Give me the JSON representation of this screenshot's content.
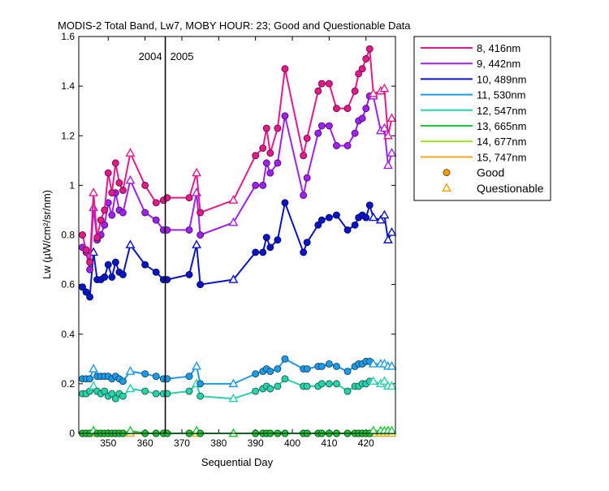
{
  "chart_data": {
    "type": "line",
    "title": "MODIS-2 Total Band,  Lw7, MOBY HOUR: 23;  Good and Questionable Data",
    "xlabel": "Sequential Day",
    "ylabel": "Lw (µW/cm²/sr/nm)",
    "xlim": [
      342,
      428
    ],
    "ylim": [
      0,
      1.6
    ],
    "xticks": [
      350,
      360,
      370,
      380,
      390,
      400,
      410,
      420
    ],
    "yticks": [
      0,
      0.2,
      0.4,
      0.6,
      0.8,
      1,
      1.2,
      1.4,
      1.6
    ],
    "ytick_labels": [
      "0",
      "0.2",
      "0.4",
      "0.6",
      "0.8",
      "1",
      "1.2",
      "1.4",
      "1.6"
    ],
    "year_divider": {
      "x": 365.5,
      "left_label": "2004",
      "right_label": "2005"
    },
    "legend_position": "outside-top-right",
    "x": [
      343,
      344,
      345,
      346,
      347,
      348,
      349,
      350,
      351,
      352,
      353,
      354,
      356,
      360,
      363,
      365,
      366,
      372,
      374,
      375,
      384,
      390,
      392,
      393,
      394,
      396,
      398,
      403,
      404,
      407,
      408,
      410,
      412,
      415,
      417,
      418,
      419,
      420,
      421,
      422,
      424,
      425,
      426,
      427
    ],
    "quality": [
      "G",
      "G",
      "G",
      "Q",
      "G",
      "G",
      "G",
      "G",
      "G",
      "G",
      "G",
      "G",
      "Q",
      "G",
      "G",
      "G",
      "G",
      "G",
      "Q",
      "G",
      "Q",
      "G",
      "G",
      "G",
      "G",
      "G",
      "G",
      "G",
      "G",
      "G",
      "G",
      "G",
      "G",
      "G",
      "G",
      "G",
      "G",
      "G",
      "G",
      "Q",
      "Q",
      "Q",
      "Q",
      "Q"
    ],
    "series": [
      {
        "name": "8, 416nm",
        "color": "#e6198c",
        "values": [
          0.8,
          0.74,
          0.69,
          0.97,
          0.79,
          0.86,
          0.9,
          1.05,
          0.97,
          1.09,
          1.01,
          0.98,
          1.13,
          1.0,
          0.93,
          0.94,
          0.95,
          0.95,
          1.05,
          0.89,
          0.94,
          1.12,
          1.15,
          1.23,
          1.13,
          1.23,
          1.47,
          1.12,
          1.19,
          1.38,
          1.41,
          1.41,
          1.31,
          1.31,
          1.38,
          1.45,
          1.47,
          1.51,
          1.55,
          1.37,
          1.38,
          1.39,
          1.2,
          1.27
        ]
      },
      {
        "name": "9, 442nm",
        "color": "#a020f0",
        "values": [
          0.75,
          0.73,
          0.66,
          0.91,
          0.78,
          0.8,
          0.84,
          0.93,
          0.88,
          0.97,
          0.9,
          0.89,
          1.02,
          0.89,
          0.86,
          0.82,
          0.82,
          0.82,
          0.97,
          0.8,
          0.85,
          1.0,
          1.0,
          1.09,
          1.05,
          1.09,
          1.28,
          0.96,
          1.03,
          1.21,
          1.24,
          1.24,
          1.16,
          1.16,
          1.21,
          1.26,
          1.27,
          1.31,
          1.36,
          1.36,
          1.22,
          1.23,
          1.08,
          1.13
        ]
      },
      {
        "name": "10, 489nm",
        "color": "#0a14c8",
        "values": [
          0.59,
          0.57,
          0.55,
          0.73,
          0.62,
          0.62,
          0.63,
          0.68,
          0.63,
          0.69,
          0.65,
          0.64,
          0.76,
          0.68,
          0.65,
          0.62,
          0.62,
          0.64,
          0.76,
          0.6,
          0.62,
          0.73,
          0.73,
          0.79,
          0.75,
          0.78,
          0.93,
          0.73,
          0.77,
          0.84,
          0.86,
          0.87,
          0.88,
          0.82,
          0.84,
          0.87,
          0.88,
          0.87,
          0.92,
          0.87,
          0.86,
          0.88,
          0.78,
          0.81
        ]
      },
      {
        "name": "11, 530nm",
        "color": "#1e9be6",
        "values": [
          0.22,
          0.22,
          0.22,
          0.26,
          0.23,
          0.23,
          0.23,
          0.23,
          0.22,
          0.23,
          0.22,
          0.21,
          0.25,
          0.24,
          0.23,
          0.22,
          0.22,
          0.23,
          0.27,
          0.2,
          0.2,
          0.24,
          0.25,
          0.26,
          0.25,
          0.26,
          0.3,
          0.26,
          0.26,
          0.27,
          0.27,
          0.28,
          0.27,
          0.25,
          0.27,
          0.28,
          0.28,
          0.29,
          0.29,
          0.28,
          0.28,
          0.28,
          0.27,
          0.27
        ]
      },
      {
        "name": "12, 547nm",
        "color": "#28d2aa",
        "values": [
          0.16,
          0.16,
          0.17,
          0.19,
          0.17,
          0.16,
          0.17,
          0.15,
          0.16,
          0.14,
          0.16,
          0.15,
          0.18,
          0.17,
          0.16,
          0.16,
          0.16,
          0.17,
          0.2,
          0.15,
          0.14,
          0.17,
          0.18,
          0.19,
          0.18,
          0.19,
          0.22,
          0.19,
          0.19,
          0.19,
          0.2,
          0.2,
          0.2,
          0.17,
          0.19,
          0.19,
          0.2,
          0.2,
          0.21,
          0.21,
          0.2,
          0.21,
          0.19,
          0.19
        ]
      },
      {
        "name": "13, 665nm",
        "color": "#1ec83c",
        "values": [
          0.0,
          0.0,
          0.0,
          0.01,
          0.0,
          0.0,
          0.0,
          0.0,
          0.0,
          0.0,
          0.0,
          0.0,
          0.01,
          0.0,
          0.0,
          0.0,
          0.0,
          0.0,
          0.01,
          0.0,
          0.0,
          0.0,
          0.0,
          0.0,
          0.0,
          0.0,
          0.0,
          0.0,
          0.0,
          0.0,
          0.0,
          0.0,
          0.0,
          0.0,
          0.0,
          0.0,
          0.0,
          0.0,
          0.0,
          0.01,
          0.01,
          0.01,
          0.01,
          0.01
        ]
      },
      {
        "name": "14, 677nm",
        "color": "#a0e61e",
        "values": [
          0.0,
          0.0,
          0.0,
          0.01,
          0.0,
          0.0,
          0.0,
          0.0,
          0.0,
          0.0,
          0.0,
          0.0,
          0.01,
          0.0,
          0.0,
          0.0,
          0.0,
          0.0,
          0.01,
          0.0,
          0.0,
          0.0,
          0.0,
          0.0,
          0.0,
          0.0,
          0.0,
          0.0,
          0.0,
          0.0,
          0.0,
          0.0,
          0.0,
          0.0,
          0.0,
          0.0,
          0.0,
          0.0,
          0.0,
          0.01,
          0.01,
          0.01,
          0.01,
          0.01
        ]
      },
      {
        "name": "15, 747nm",
        "color": "#f0aa1e",
        "values": [
          0.0,
          0.0,
          0.0,
          0.0,
          0.0,
          0.0,
          0.0,
          0.0,
          0.0,
          0.0,
          0.0,
          0.0,
          0.0,
          0.0,
          0.0,
          0.0,
          0.0,
          0.0,
          0.0,
          0.0,
          0.0,
          0.0,
          0.0,
          0.0,
          0.0,
          0.0,
          0.0,
          0.0,
          0.0,
          0.0,
          0.0,
          0.0,
          0.0,
          0.0,
          0.0,
          0.0,
          0.0,
          0.0,
          0.0,
          0.0,
          0.0,
          0.0,
          0.0,
          0.0
        ]
      }
    ],
    "legend_markers": [
      {
        "label": "Good",
        "marker": "circle",
        "color": "#f0a000"
      },
      {
        "label": "Questionable",
        "marker": "triangle",
        "color": "#f0a000"
      }
    ]
  }
}
